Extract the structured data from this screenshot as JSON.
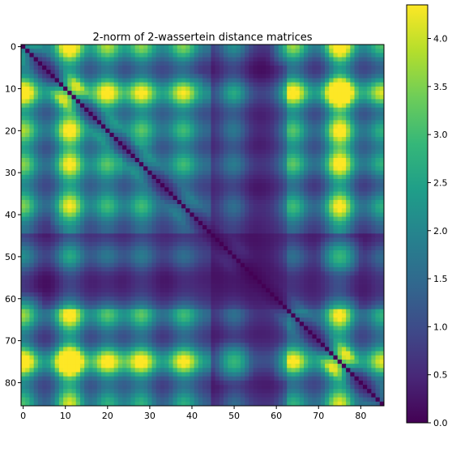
{
  "chart_data": {
    "type": "heatmap",
    "title": "2-norm of 2-wassertein distance matrices",
    "xlabel": "",
    "ylabel": "",
    "size": 86,
    "xlim": [
      -0.5,
      85.5
    ],
    "ylim": [
      85.5,
      -0.5
    ],
    "x_ticks": [
      0,
      10,
      20,
      30,
      40,
      50,
      60,
      70,
      80
    ],
    "y_ticks": [
      0,
      10,
      20,
      30,
      40,
      50,
      60,
      70,
      80
    ],
    "colormap": "viridis",
    "color_range": [
      0.0,
      4.35
    ],
    "colorbar_ticks": [
      "0.0",
      "0.5",
      "1.0",
      "1.5",
      "2.0",
      "2.5",
      "3.0",
      "3.5",
      "4.0"
    ],
    "colorbar_tick_values": [
      0.0,
      0.5,
      1.0,
      1.5,
      2.0,
      2.5,
      3.0,
      3.5,
      4.0
    ],
    "diagonal_value": 0.0,
    "grid": false,
    "hotspots": [
      {
        "row": 0,
        "col": 11,
        "value": 4.2
      },
      {
        "row": 11,
        "col": 0,
        "value": 4.2
      },
      {
        "row": 11,
        "col": 75,
        "value": 4.35
      },
      {
        "row": 75,
        "col": 11,
        "value": 4.35
      },
      {
        "row": 11,
        "col": 20,
        "value": 3.4
      },
      {
        "row": 20,
        "col": 11,
        "value": 3.4
      },
      {
        "row": 11,
        "col": 38,
        "value": 3.3
      },
      {
        "row": 38,
        "col": 11,
        "value": 3.3
      },
      {
        "row": 0,
        "col": 28,
        "value": 3.2
      },
      {
        "row": 28,
        "col": 0,
        "value": 3.2
      },
      {
        "row": 0,
        "col": 64,
        "value": 3.3
      },
      {
        "row": 64,
        "col": 0,
        "value": 3.3
      },
      {
        "row": 28,
        "col": 75,
        "value": 3.2
      },
      {
        "row": 75,
        "col": 28,
        "value": 3.2
      },
      {
        "row": 64,
        "col": 75,
        "value": 3.3
      },
      {
        "row": 75,
        "col": 64,
        "value": 3.3
      },
      {
        "row": 40,
        "col": 11,
        "value": 3.0
      },
      {
        "row": 11,
        "col": 40,
        "value": 3.0
      },
      {
        "row": 22,
        "col": 28,
        "value": 2.7
      },
      {
        "row": 28,
        "col": 22,
        "value": 2.7
      },
      {
        "row": 50,
        "col": 75,
        "value": 2.9
      },
      {
        "row": 75,
        "col": 50,
        "value": 2.9
      }
    ]
  }
}
